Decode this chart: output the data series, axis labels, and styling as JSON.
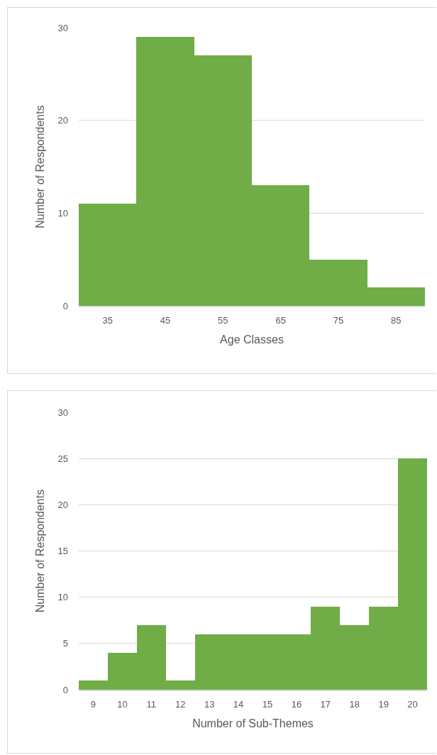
{
  "chart_data": [
    {
      "type": "histogram",
      "xlabel": "Age Classes",
      "ylabel": "Number of Respondents",
      "bins": [
        30,
        40,
        50,
        60,
        70,
        80,
        90
      ],
      "values": [
        11,
        29,
        27,
        13,
        5,
        2
      ],
      "color": "#70ad47",
      "xlim": [
        30,
        90
      ],
      "xticks": [
        35,
        45,
        55,
        65,
        75,
        85
      ],
      "ylim": [
        0,
        30
      ],
      "yticks": [
        0,
        10,
        20,
        30
      ],
      "grid": "y"
    },
    {
      "type": "histogram",
      "xlabel": "Number of Sub-Themes",
      "ylabel": "Number of Respondents",
      "bins": [
        8.5,
        9.5,
        10.5,
        11.5,
        12.5,
        13.5,
        14.5,
        15.5,
        16.5,
        17.5,
        18.5,
        19.5,
        20.5
      ],
      "values": [
        1,
        4,
        7,
        1,
        6,
        6,
        6,
        6,
        9,
        7,
        9,
        25
      ],
      "color": "#70ad47",
      "xlim": [
        8.5,
        20.5
      ],
      "xticks": [
        9,
        10,
        11,
        12,
        13,
        14,
        15,
        16,
        17,
        18,
        19,
        20
      ],
      "ylim": [
        0,
        30
      ],
      "yticks": [
        0,
        5,
        10,
        15,
        20,
        25,
        30
      ],
      "grid": "y"
    }
  ]
}
